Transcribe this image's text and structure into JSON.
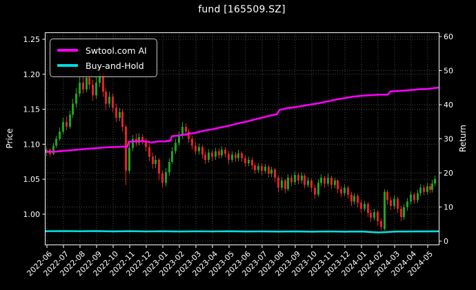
{
  "chart_data": {
    "type": "candlestick",
    "title": "fund [165509.SZ]",
    "xlabel": "",
    "price_axis": {
      "label": "Price",
      "ticks": [
        1.0,
        1.05,
        1.1,
        1.15,
        1.2,
        1.25
      ],
      "ylim": [
        0.957,
        1.26
      ]
    },
    "return_axis": {
      "label": "Return",
      "ticks": [
        0,
        10,
        20,
        30,
        40,
        50,
        60
      ],
      "ylim": [
        -1.0,
        61.2
      ]
    },
    "x_ticklabels": [
      "2022-06",
      "2022-07",
      "2022-08",
      "2022-09",
      "2022-10",
      "2022-11",
      "2022-12",
      "2023-01",
      "2023-02",
      "2023-03",
      "2023-04",
      "2023-05",
      "2023-06",
      "2023-07",
      "2023-08",
      "2023-09",
      "2023-10",
      "2023-11",
      "2023-12",
      "2024-01",
      "2024-02",
      "2024-03",
      "2024-04",
      "2024-05"
    ],
    "grid": true,
    "legend_position": "upper-left",
    "colors": {
      "background": "#000000",
      "foreground": "#ffffff",
      "grid": "#9a9a9a",
      "up": "#1ea51e",
      "down": "#e62222"
    },
    "candles_format": "[monthIndex, open, high, low, close] where monthIndex 0 = 2022-06",
    "candles": [
      [
        0.0,
        1.088,
        1.096,
        1.083,
        1.092
      ],
      [
        0.2,
        1.092,
        1.095,
        1.082,
        1.086
      ],
      [
        0.4,
        1.086,
        1.102,
        1.084,
        1.098
      ],
      [
        0.6,
        1.098,
        1.112,
        1.095,
        1.108
      ],
      [
        0.8,
        1.108,
        1.124,
        1.105,
        1.118
      ],
      [
        1.0,
        1.118,
        1.138,
        1.114,
        1.132
      ],
      [
        1.2,
        1.132,
        1.14,
        1.12,
        1.125
      ],
      [
        1.4,
        1.125,
        1.148,
        1.122,
        1.142
      ],
      [
        1.6,
        1.142,
        1.165,
        1.138,
        1.158
      ],
      [
        1.8,
        1.158,
        1.18,
        1.152,
        1.172
      ],
      [
        2.0,
        1.172,
        1.196,
        1.168,
        1.188
      ],
      [
        2.2,
        1.188,
        1.2,
        1.172,
        1.178
      ],
      [
        2.4,
        1.178,
        1.205,
        1.174,
        1.195
      ],
      [
        2.6,
        1.195,
        1.208,
        1.178,
        1.185
      ],
      [
        2.8,
        1.185,
        1.192,
        1.162,
        1.17
      ],
      [
        3.0,
        1.17,
        1.198,
        1.165,
        1.188
      ],
      [
        3.2,
        1.188,
        1.213,
        1.182,
        1.202
      ],
      [
        3.4,
        1.202,
        1.208,
        1.168,
        1.175
      ],
      [
        3.6,
        1.175,
        1.18,
        1.148,
        1.158
      ],
      [
        3.8,
        1.158,
        1.175,
        1.152,
        1.168
      ],
      [
        4.0,
        1.168,
        1.172,
        1.146,
        1.152
      ],
      [
        4.2,
        1.152,
        1.158,
        1.132,
        1.138
      ],
      [
        4.4,
        1.138,
        1.152,
        1.133,
        1.146
      ],
      [
        4.6,
        1.146,
        1.15,
        1.118,
        1.125
      ],
      [
        4.8,
        1.125,
        1.128,
        1.042,
        1.062
      ],
      [
        5.0,
        1.062,
        1.102,
        1.058,
        1.095
      ],
      [
        5.2,
        1.095,
        1.113,
        1.09,
        1.108
      ],
      [
        5.4,
        1.108,
        1.115,
        1.097,
        1.102
      ],
      [
        5.6,
        1.102,
        1.116,
        1.098,
        1.11
      ],
      [
        5.8,
        1.11,
        1.114,
        1.1,
        1.105
      ],
      [
        6.0,
        1.105,
        1.109,
        1.09,
        1.096
      ],
      [
        6.2,
        1.096,
        1.1,
        1.076,
        1.082
      ],
      [
        6.4,
        1.082,
        1.088,
        1.065,
        1.072
      ],
      [
        6.6,
        1.072,
        1.084,
        1.066,
        1.078
      ],
      [
        6.8,
        1.078,
        1.08,
        1.048,
        1.058
      ],
      [
        7.0,
        1.058,
        1.062,
        1.038,
        1.045
      ],
      [
        7.2,
        1.045,
        1.066,
        1.04,
        1.06
      ],
      [
        7.4,
        1.06,
        1.08,
        1.055,
        1.075
      ],
      [
        7.6,
        1.075,
        1.096,
        1.072,
        1.09
      ],
      [
        7.8,
        1.09,
        1.108,
        1.086,
        1.102
      ],
      [
        8.0,
        1.102,
        1.118,
        1.098,
        1.112
      ],
      [
        8.2,
        1.112,
        1.132,
        1.108,
        1.125
      ],
      [
        8.4,
        1.125,
        1.13,
        1.112,
        1.118
      ],
      [
        8.6,
        1.118,
        1.122,
        1.102,
        1.108
      ],
      [
        8.8,
        1.108,
        1.112,
        1.092,
        1.098
      ],
      [
        9.0,
        1.098,
        1.103,
        1.085,
        1.09
      ],
      [
        9.2,
        1.09,
        1.101,
        1.085,
        1.096
      ],
      [
        9.4,
        1.096,
        1.099,
        1.079,
        1.085
      ],
      [
        9.6,
        1.085,
        1.09,
        1.072,
        1.078
      ],
      [
        9.8,
        1.078,
        1.093,
        1.074,
        1.088
      ],
      [
        10.0,
        1.088,
        1.092,
        1.076,
        1.082
      ],
      [
        10.2,
        1.082,
        1.095,
        1.078,
        1.09
      ],
      [
        10.4,
        1.09,
        1.094,
        1.079,
        1.084
      ],
      [
        10.6,
        1.084,
        1.097,
        1.08,
        1.092
      ],
      [
        10.8,
        1.092,
        1.096,
        1.081,
        1.086
      ],
      [
        11.0,
        1.086,
        1.09,
        1.072,
        1.078
      ],
      [
        11.2,
        1.078,
        1.09,
        1.074,
        1.085
      ],
      [
        11.4,
        1.085,
        1.089,
        1.075,
        1.08
      ],
      [
        11.6,
        1.08,
        1.092,
        1.076,
        1.087
      ],
      [
        11.8,
        1.087,
        1.09,
        1.075,
        1.08
      ],
      [
        12.0,
        1.08,
        1.084,
        1.068,
        1.073
      ],
      [
        12.2,
        1.073,
        1.082,
        1.069,
        1.078
      ],
      [
        12.4,
        1.078,
        1.081,
        1.064,
        1.07
      ],
      [
        12.6,
        1.07,
        1.074,
        1.058,
        1.063
      ],
      [
        12.8,
        1.063,
        1.073,
        1.059,
        1.069
      ],
      [
        13.0,
        1.069,
        1.073,
        1.056,
        1.062
      ],
      [
        13.2,
        1.062,
        1.072,
        1.058,
        1.068
      ],
      [
        13.4,
        1.068,
        1.07,
        1.052,
        1.058
      ],
      [
        13.6,
        1.058,
        1.068,
        1.053,
        1.064
      ],
      [
        13.8,
        1.064,
        1.066,
        1.046,
        1.052
      ],
      [
        14.0,
        1.052,
        1.055,
        1.032,
        1.038
      ],
      [
        14.2,
        1.038,
        1.053,
        1.034,
        1.048
      ],
      [
        14.4,
        1.048,
        1.05,
        1.03,
        1.036
      ],
      [
        14.6,
        1.036,
        1.057,
        1.033,
        1.052
      ],
      [
        14.8,
        1.052,
        1.056,
        1.04,
        1.046
      ],
      [
        15.0,
        1.046,
        1.061,
        1.042,
        1.056
      ],
      [
        15.2,
        1.056,
        1.059,
        1.043,
        1.048
      ],
      [
        15.4,
        1.048,
        1.06,
        1.044,
        1.055
      ],
      [
        15.6,
        1.055,
        1.058,
        1.037,
        1.042
      ],
      [
        15.8,
        1.042,
        1.053,
        1.038,
        1.048
      ],
      [
        16.0,
        1.048,
        1.051,
        1.032,
        1.038
      ],
      [
        16.2,
        1.038,
        1.042,
        1.022,
        1.028
      ],
      [
        16.4,
        1.028,
        1.05,
        1.025,
        1.045
      ],
      [
        16.6,
        1.045,
        1.057,
        1.04,
        1.052
      ],
      [
        16.8,
        1.052,
        1.055,
        1.038,
        1.044
      ],
      [
        17.0,
        1.044,
        1.058,
        1.04,
        1.052
      ],
      [
        17.2,
        1.052,
        1.055,
        1.036,
        1.042
      ],
      [
        17.4,
        1.042,
        1.052,
        1.037,
        1.048
      ],
      [
        17.6,
        1.048,
        1.05,
        1.03,
        1.036
      ],
      [
        17.8,
        1.036,
        1.04,
        1.024,
        1.03
      ],
      [
        18.0,
        1.03,
        1.043,
        1.026,
        1.038
      ],
      [
        18.2,
        1.038,
        1.041,
        1.022,
        1.028
      ],
      [
        18.4,
        1.028,
        1.032,
        1.012,
        1.018
      ],
      [
        18.6,
        1.018,
        1.03,
        1.014,
        1.026
      ],
      [
        18.8,
        1.026,
        1.029,
        1.01,
        1.016
      ],
      [
        19.0,
        1.016,
        1.02,
        1.002,
        1.008
      ],
      [
        19.2,
        1.008,
        1.019,
        1.004,
        1.015
      ],
      [
        19.4,
        1.015,
        1.017,
        0.996,
        1.002
      ],
      [
        19.6,
        1.002,
        1.006,
        0.989,
        0.995
      ],
      [
        19.8,
        0.995,
        1.008,
        0.991,
        1.003
      ],
      [
        20.0,
        1.003,
        1.006,
        0.984,
        0.99
      ],
      [
        20.2,
        0.99,
        0.994,
        0.977,
        0.982
      ],
      [
        20.4,
        0.979,
        1.036,
        0.977,
        1.032
      ],
      [
        20.6,
        1.032,
        1.035,
        1.014,
        1.02
      ],
      [
        20.8,
        1.02,
        1.024,
        1.006,
        1.012
      ],
      [
        21.0,
        1.012,
        1.027,
        1.008,
        1.022
      ],
      [
        21.2,
        1.022,
        1.025,
        1.002,
        1.008
      ],
      [
        21.4,
        1.008,
        1.012,
        0.99,
        0.996
      ],
      [
        21.6,
        0.996,
        1.015,
        0.992,
        1.01
      ],
      [
        21.8,
        1.01,
        1.023,
        1.005,
        1.018
      ],
      [
        22.0,
        1.018,
        1.033,
        1.014,
        1.028
      ],
      [
        22.2,
        1.028,
        1.031,
        1.015,
        1.02
      ],
      [
        22.4,
        1.02,
        1.035,
        1.016,
        1.03
      ],
      [
        22.6,
        1.03,
        1.043,
        1.026,
        1.038
      ],
      [
        22.8,
        1.038,
        1.042,
        1.027,
        1.032
      ],
      [
        23.0,
        1.032,
        1.045,
        1.028,
        1.04
      ],
      [
        23.15,
        1.04,
        1.044,
        1.03,
        1.035
      ],
      [
        23.3,
        1.035,
        1.049,
        1.031,
        1.044
      ],
      [
        23.45,
        1.044,
        1.055,
        1.04,
        1.05
      ]
    ],
    "series": [
      {
        "name": "Swtool.com AI",
        "color": "#ff00ff",
        "axis": "price",
        "points": [
          [
            -0.125,
            1.089
          ],
          [
            0.5,
            1.0895
          ],
          [
            1,
            1.0905
          ],
          [
            1.5,
            1.0915
          ],
          [
            2,
            1.0925
          ],
          [
            2.5,
            1.0935
          ],
          [
            3,
            1.0945
          ],
          [
            3.5,
            1.0955
          ],
          [
            4,
            1.096
          ],
          [
            4.5,
            1.0965
          ],
          [
            4.85,
            1.0965
          ],
          [
            4.95,
            1.1035
          ],
          [
            5.5,
            1.1045
          ],
          [
            6,
            1.104
          ],
          [
            6.3,
            1.1025
          ],
          [
            6.7,
            1.104
          ],
          [
            7.1,
            1.104
          ],
          [
            7.45,
            1.105
          ],
          [
            7.55,
            1.1115
          ],
          [
            8,
            1.1125
          ],
          [
            8.5,
            1.1145
          ],
          [
            9,
            1.1165
          ],
          [
            9.5,
            1.1195
          ],
          [
            10,
            1.1215
          ],
          [
            10.5,
            1.124
          ],
          [
            11,
            1.1265
          ],
          [
            11.5,
            1.1295
          ],
          [
            12,
            1.132
          ],
          [
            12.5,
            1.135
          ],
          [
            13,
            1.138
          ],
          [
            13.5,
            1.141
          ],
          [
            13.9,
            1.143
          ],
          [
            14.05,
            1.149
          ],
          [
            14.5,
            1.1515
          ],
          [
            15,
            1.153
          ],
          [
            15.5,
            1.155
          ],
          [
            16,
            1.157
          ],
          [
            16.5,
            1.159
          ],
          [
            17,
            1.1615
          ],
          [
            17.5,
            1.164
          ],
          [
            18,
            1.166
          ],
          [
            18.5,
            1.168
          ],
          [
            19,
            1.1692
          ],
          [
            19.5,
            1.17
          ],
          [
            20,
            1.1708
          ],
          [
            20.6,
            1.171
          ],
          [
            20.75,
            1.1755
          ],
          [
            21.5,
            1.1765
          ],
          [
            22,
            1.1775
          ],
          [
            22.5,
            1.1785
          ],
          [
            23,
            1.179
          ],
          [
            23.67,
            1.181
          ]
        ]
      },
      {
        "name": "Buy-and-Hold",
        "color": "#00dede",
        "axis": "price",
        "points": [
          [
            -0.125,
            0.9757
          ],
          [
            1,
            0.976
          ],
          [
            2,
            0.9757
          ],
          [
            3,
            0.976
          ],
          [
            4,
            0.9755
          ],
          [
            5,
            0.9758
          ],
          [
            6,
            0.9754
          ],
          [
            7,
            0.9757
          ],
          [
            8,
            0.9753
          ],
          [
            9,
            0.9756
          ],
          [
            10,
            0.9754
          ],
          [
            11,
            0.9757
          ],
          [
            12,
            0.9753
          ],
          [
            13,
            0.9755
          ],
          [
            14,
            0.9752
          ],
          [
            15,
            0.9755
          ],
          [
            16,
            0.9751
          ],
          [
            17,
            0.9754
          ],
          [
            18,
            0.9751
          ],
          [
            19,
            0.9753
          ],
          [
            20,
            0.974
          ],
          [
            20.5,
            0.9745
          ],
          [
            21,
            0.9752
          ],
          [
            22,
            0.9753
          ],
          [
            23,
            0.9755
          ],
          [
            23.67,
            0.9756
          ]
        ]
      }
    ]
  }
}
